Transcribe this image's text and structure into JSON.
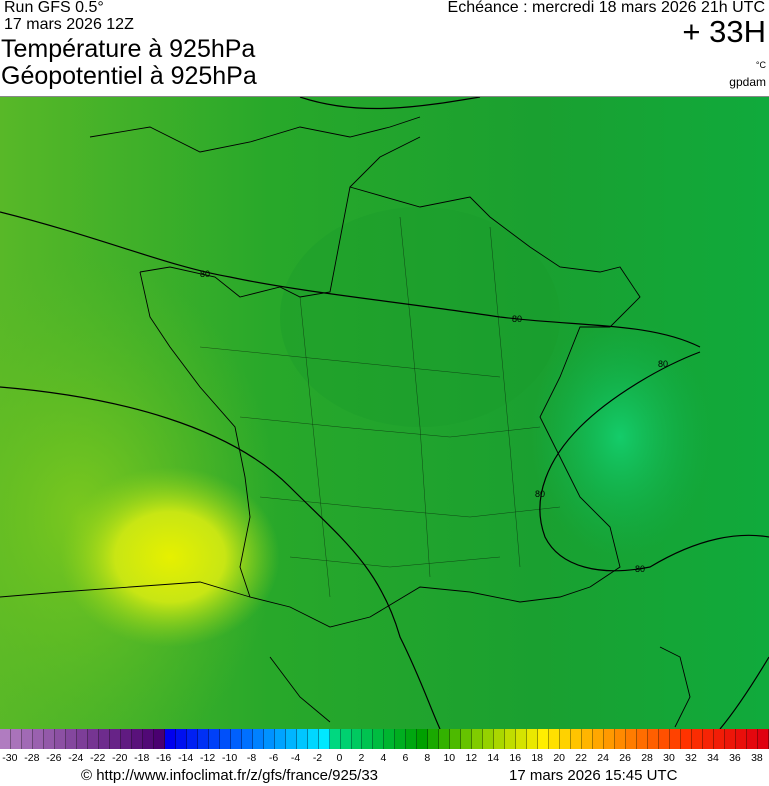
{
  "header": {
    "run": "Run GFS 0.5°",
    "run_date": "17 mars 2026 12Z",
    "title_line1": "Température à 925hPa",
    "title_line2": "Géopotentiel à 925hPa",
    "echeance": "Echéance : mercredi 18 mars 2026 21h UTC",
    "lead_time": "+ 33H",
    "unit": "°C",
    "source_tag": "gpdam"
  },
  "map": {
    "region": "France",
    "field": "temperature 925hPa",
    "contour_labels": [
      "80",
      "80",
      "80",
      "80",
      "80"
    ],
    "background_color": "#1fa82a",
    "warm_region_color": "#d7ec10"
  },
  "colorbar": {
    "min": -30,
    "max": 40,
    "step": 1,
    "tick_labels": [
      "-30",
      "-28",
      "-26",
      "-24",
      "-22",
      "-20",
      "-18",
      "-16",
      "-14",
      "-12",
      "-10",
      "-8",
      "-6",
      "-4",
      "-2",
      "0",
      "2",
      "4",
      "6",
      "8",
      "10",
      "12",
      "14",
      "16",
      "18",
      "20",
      "22",
      "24",
      "26",
      "28",
      "30",
      "32",
      "34",
      "36",
      "38"
    ],
    "anchor_colors": [
      {
        "value": -30,
        "color": "#b07cc0"
      },
      {
        "value": -16,
        "color": "#4a0070"
      },
      {
        "value": -15,
        "color": "#0000ee"
      },
      {
        "value": -8,
        "color": "#0070ff"
      },
      {
        "value": -1,
        "color": "#00e8ff"
      },
      {
        "value": 0,
        "color": "#00d880"
      },
      {
        "value": 8,
        "color": "#00a000"
      },
      {
        "value": 13,
        "color": "#80cc00"
      },
      {
        "value": 19,
        "color": "#ffee00"
      },
      {
        "value": 25,
        "color": "#ff9900"
      },
      {
        "value": 32,
        "color": "#ff3300"
      },
      {
        "value": 39,
        "color": "#e00010"
      }
    ]
  },
  "footer": {
    "url": "© http://www.infoclimat.fr/z/gfs/france/925/33",
    "generated": "17 mars 2026 15:45 UTC"
  }
}
